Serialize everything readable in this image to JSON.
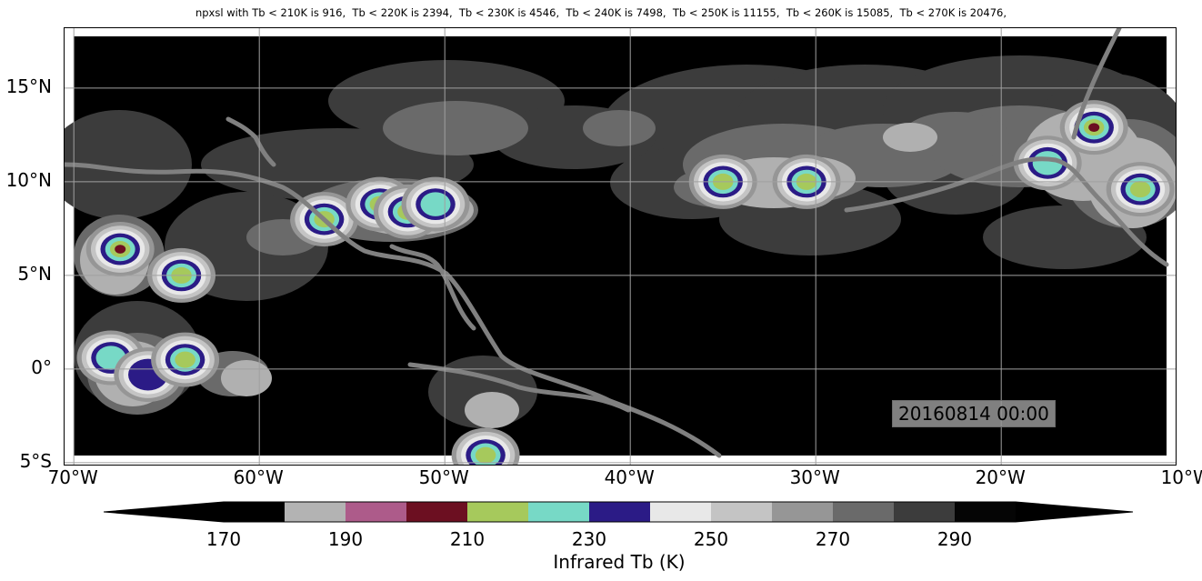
{
  "title": "npxsl with Tb < 210K is 916,  Tb < 220K is 2394,  Tb < 230K is 4546,  Tb < 240K is 7498,  Tb < 250K is 11155,  Tb < 260K is 15085,  Tb < 270K is 20476,",
  "timestamp": "20160814 00:00",
  "chart_data": {
    "type": "heatmap",
    "title": "npxsl with Tb < 210K is 916,  Tb < 220K is 2394,  Tb < 230K is 4546,  Tb < 240K is 7498,  Tb < 250K is 11155,  Tb < 260K is 15085,  Tb < 270K is 20476,",
    "subtitle": "20160814 00:00",
    "xlabel": "",
    "ylabel": "",
    "xlim": [
      -70.5,
      -10.5
    ],
    "ylim": [
      -5.2,
      18.2
    ],
    "grid": true,
    "x_ticks": [
      {
        "value": -70,
        "label": "70°W"
      },
      {
        "value": -60,
        "label": "60°W"
      },
      {
        "value": -50,
        "label": "50°W"
      },
      {
        "value": -40,
        "label": "40°W"
      },
      {
        "value": -30,
        "label": "30°W"
      },
      {
        "value": -20,
        "label": "20°W"
      },
      {
        "value": -10,
        "label": "10°W"
      }
    ],
    "y_ticks": [
      {
        "value": 15,
        "label": "15°N"
      },
      {
        "value": 10,
        "label": "10°N"
      },
      {
        "value": 5,
        "label": "5°N"
      },
      {
        "value": 0,
        "label": "0°"
      },
      {
        "value": -5,
        "label": "5°S"
      }
    ],
    "colorbar": {
      "label": "Infrared Tb (K)",
      "extend": "both",
      "levels": [
        170,
        180,
        190,
        200,
        210,
        220,
        230,
        240,
        250,
        260,
        270,
        280,
        290,
        300
      ],
      "colors": [
        "#000000",
        "#b3b3b3",
        "#ad5b8a",
        "#6c0f21",
        "#a6c95c",
        "#77d9c6",
        "#2b1b86",
        "#e8e8e8",
        "#c4c4c4",
        "#969696",
        "#6a6a6a",
        "#3c3c3c",
        "#050505"
      ],
      "under_color": "#000000",
      "over_color": "#000000",
      "tick_values": [
        170,
        190,
        210,
        230,
        250,
        270,
        290
      ],
      "tick_labels": [
        "170",
        "190",
        "210",
        "230",
        "250",
        "270",
        "290"
      ]
    },
    "storm_systems": [
      {
        "lon": -67.5,
        "lat": 6.4,
        "min_tb": 200
      },
      {
        "lon": -64.2,
        "lat": 5.0,
        "min_tb": 205
      },
      {
        "lon": -68.0,
        "lat": 0.6,
        "min_tb": 215
      },
      {
        "lon": -66.0,
        "lat": -0.3,
        "min_tb": 225
      },
      {
        "lon": -64.0,
        "lat": 0.5,
        "min_tb": 205
      },
      {
        "lon": -56.5,
        "lat": 8.0,
        "min_tb": 205
      },
      {
        "lon": -53.5,
        "lat": 8.8,
        "min_tb": 205
      },
      {
        "lon": -52.0,
        "lat": 8.4,
        "min_tb": 205
      },
      {
        "lon": -50.5,
        "lat": 8.8,
        "min_tb": 215
      },
      {
        "lon": -47.8,
        "lat": -4.6,
        "min_tb": 205
      },
      {
        "lon": -35.0,
        "lat": 10.0,
        "min_tb": 205
      },
      {
        "lon": -30.5,
        "lat": 10.0,
        "min_tb": 205
      },
      {
        "lon": -15.0,
        "lat": 12.9,
        "min_tb": 195
      },
      {
        "lon": -12.5,
        "lat": 9.6,
        "min_tb": 205
      },
      {
        "lon": -17.5,
        "lat": 11.0,
        "min_tb": 220
      }
    ]
  }
}
